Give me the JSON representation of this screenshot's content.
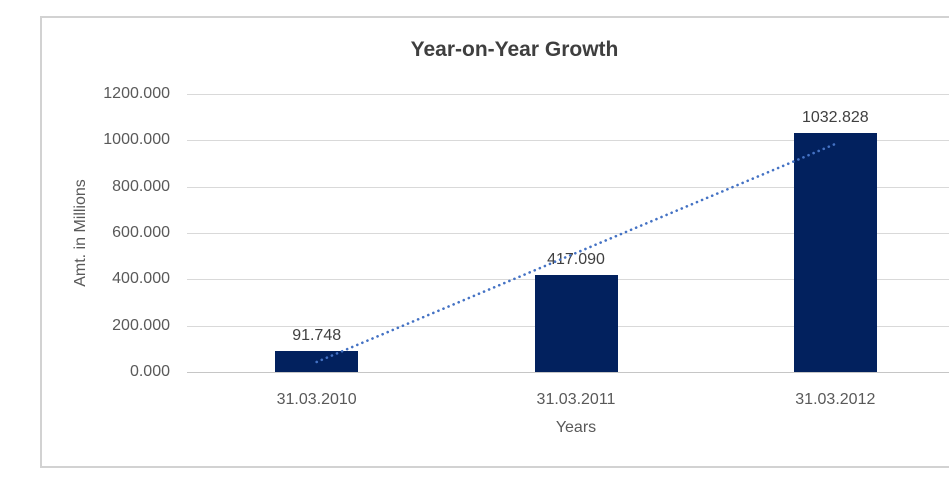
{
  "chart_data": {
    "type": "bar",
    "title": "Year-on-Year Growth",
    "xlabel": "Years",
    "ylabel": "Amt. in Millions",
    "categories": [
      "31.03.2010",
      "31.03.2011",
      "31.03.2012"
    ],
    "values": [
      91.748,
      417.09,
      1032.828
    ],
    "value_labels": [
      "91.748",
      "417.090",
      "1032.828"
    ],
    "ytick_labels": [
      "1200.000",
      "1000.000",
      "800.000",
      "600.000",
      "400.000",
      "200.000",
      "0.000"
    ],
    "ylim": [
      0,
      1200
    ],
    "grid": "horizontal",
    "legend": "none",
    "bar_color": "#02215E",
    "trendline": {
      "type": "linear",
      "style": "dotted",
      "color": "#4472C4"
    },
    "colors": {
      "title_text": "#3F3F3F",
      "axis_text": "#595959",
      "value_label_text": "#404040",
      "gridline": "#D9D9D9",
      "axis_line": "#C6C6C6",
      "frame_border": "#D2D2D2",
      "background": "#FFFFFF"
    }
  }
}
